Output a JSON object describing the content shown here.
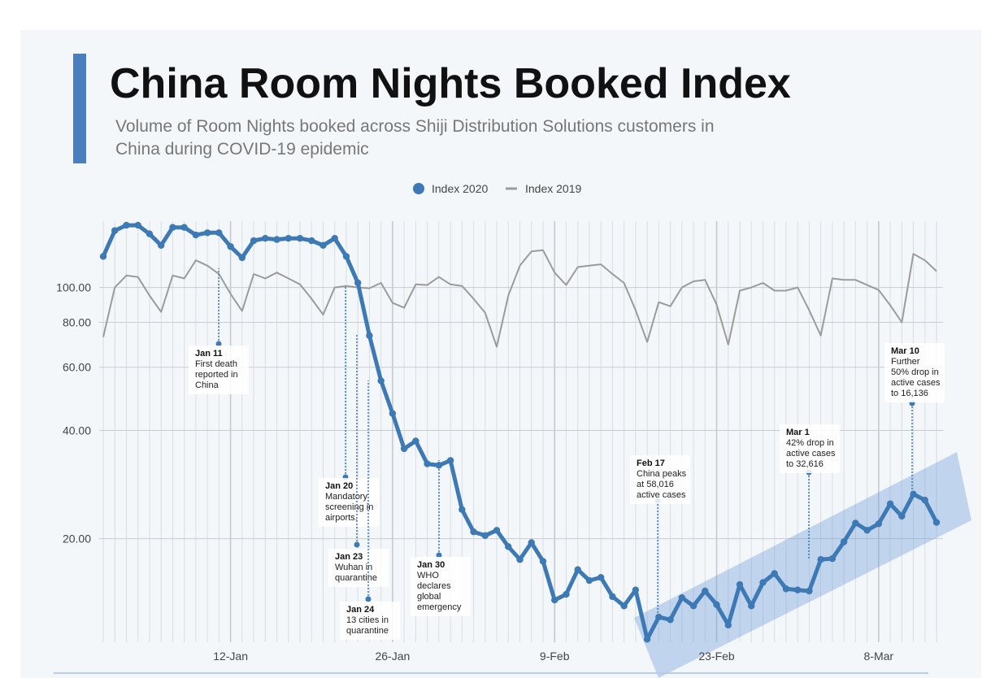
{
  "chart_data": {
    "type": "line",
    "title": "China Room Nights Booked Index",
    "subtitle": [
      "Volume of Room Nights booked across Shiji Distribution Solutions customers in",
      "China during COVID-19 epidemic"
    ],
    "categories": [
      null,
      null,
      null,
      null,
      null,
      null,
      null,
      null,
      null,
      null,
      null,
      "12-Jan",
      null,
      null,
      null,
      null,
      null,
      null,
      null,
      null,
      null,
      null,
      null,
      null,
      null,
      "26-Jan",
      null,
      null,
      null,
      null,
      null,
      null,
      null,
      null,
      null,
      null,
      null,
      null,
      null,
      "9-Feb",
      null,
      null,
      null,
      null,
      null,
      null,
      null,
      null,
      null,
      null,
      null,
      null,
      null,
      "23-Feb",
      null,
      null,
      null,
      null,
      null,
      null,
      null,
      null,
      null,
      null,
      null,
      null,
      null,
      "8-Mar",
      null,
      null,
      null,
      null,
      null
    ],
    "series": [
      {
        "name": "Index 2020",
        "color": "#3d79b4",
        "values": [
          122,
          144,
          149,
          149,
          141,
          131,
          147,
          147,
          140,
          142,
          142,
          130,
          121,
          135,
          137,
          136,
          137,
          137,
          135,
          131,
          137,
          122,
          103,
          73.5,
          55,
          44.6,
          35.6,
          37.4,
          32.3,
          32,
          33,
          24.1,
          20.9,
          20.4,
          21.1,
          19,
          17.5,
          19.5,
          17.3,
          13.5,
          14,
          16.4,
          15.3,
          15.6,
          13.8,
          13,
          14.4,
          10.5,
          12.1,
          11.9,
          13.7,
          13,
          14.3,
          13.1,
          11.5,
          14.9,
          13,
          15.1,
          16,
          14.5,
          14.4,
          14.3,
          17.5,
          17.6,
          19.6,
          22.1,
          21.1,
          22,
          25,
          23.1,
          26.6,
          25.6,
          22.2
        ]
      },
      {
        "name": "Index 2019",
        "color": "#9b9b9b",
        "values": [
          72.8,
          100,
          108,
          107,
          95,
          85.5,
          108,
          106,
          119,
          115,
          109,
          96,
          86,
          109,
          106,
          110,
          106,
          102,
          93,
          84,
          100,
          101,
          100,
          99.5,
          103,
          90.6,
          87.8,
          102,
          101.6,
          107,
          102,
          101,
          93,
          85,
          68.4,
          95,
          115,
          126,
          127,
          110,
          101.6,
          114,
          115,
          116,
          109,
          103,
          86.4,
          70.5,
          91,
          88.7,
          100,
          104,
          105,
          89.6,
          69.4,
          98,
          100,
          103,
          98,
          98,
          100,
          86.4,
          73.5,
          106,
          105,
          105,
          101.6,
          98.4,
          89.2,
          80,
          124,
          119,
          111
        ]
      }
    ],
    "ylim": [
      10.3,
      153
    ],
    "log_y": true,
    "yticks": [
      {
        "value": 20,
        "label": "20.00"
      },
      {
        "value": 40,
        "label": "40.00"
      },
      {
        "value": 60,
        "label": "60.00"
      },
      {
        "value": 80,
        "label": "80.00"
      },
      {
        "value": 100,
        "label": "100.00"
      }
    ],
    "grid": true,
    "legend": "top",
    "annotations": [
      {
        "label": "Jan 11",
        "text": [
          "First death",
          "reported in",
          "China"
        ]
      },
      {
        "label": "Jan 20",
        "text": [
          "Mandatory",
          "screening in",
          "airports."
        ]
      },
      {
        "label": "Jan 23",
        "text": [
          "Wuhan in",
          "quarantine"
        ]
      },
      {
        "label": "Jan 24",
        "text": [
          "13 cities in",
          "quarantine"
        ]
      },
      {
        "label": "Jan 30",
        "text": [
          "WHO",
          "declares",
          "global",
          "emergency"
        ]
      },
      {
        "label": "Feb 17",
        "text": [
          "China peaks",
          "at 58,016",
          "active cases"
        ]
      },
      {
        "label": "Mar 1",
        "text": [
          "42% drop in",
          "active cases",
          "to 32,616"
        ]
      },
      {
        "label": "Mar 10",
        "text": [
          "Further",
          "50% drop in",
          "active cases",
          "to 16,136"
        ]
      }
    ]
  }
}
